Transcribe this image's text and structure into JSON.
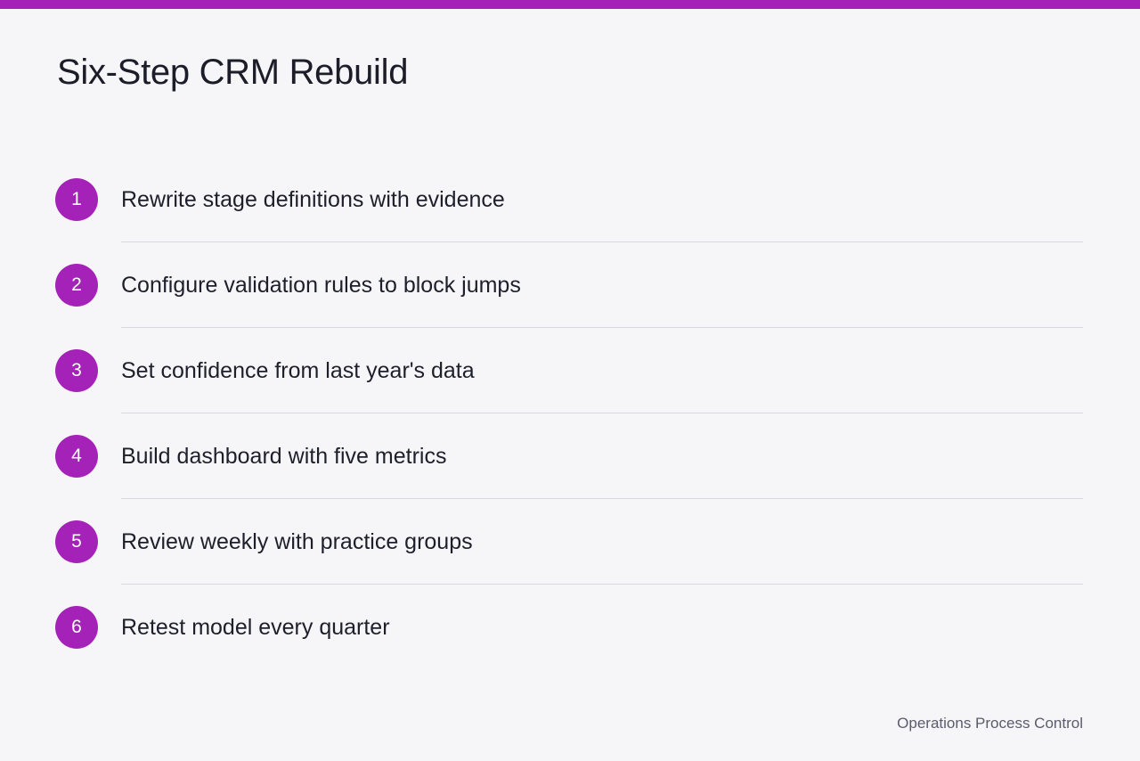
{
  "header": {
    "title": "Six-Step CRM Rebuild"
  },
  "steps": [
    {
      "number": "1",
      "label": "Rewrite stage definitions with evidence"
    },
    {
      "number": "2",
      "label": "Configure validation rules to block jumps"
    },
    {
      "number": "3",
      "label": "Set confidence from last year's data"
    },
    {
      "number": "4",
      "label": "Build dashboard with five metrics"
    },
    {
      "number": "5",
      "label": "Review weekly with practice groups"
    },
    {
      "number": "6",
      "label": "Retest model every quarter"
    }
  ],
  "footer": {
    "text": "Operations Process Control"
  },
  "colors": {
    "accent": "#a522b8",
    "background": "#f6f6f9",
    "divider": "#d7d7df",
    "text": "#1f1f2b",
    "muted_text": "#5b5b6b"
  }
}
